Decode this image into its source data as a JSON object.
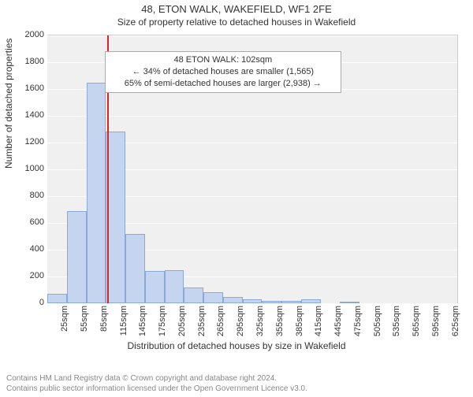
{
  "title": "48, ETON WALK, WAKEFIELD, WF1 2FE",
  "subtitle": "Size of property relative to detached houses in Wakefield",
  "chart": {
    "type": "histogram",
    "background_color": "#f0f0f0",
    "grid_color": "#ffffff",
    "bar_fill": "#c5d5ef",
    "bar_border": "#8aa8d8",
    "marker_color": "#d22",
    "marker_x_sqm": 102,
    "ylabel": "Number of detached properties",
    "xlabel": "Distribution of detached houses by size in Wakefield",
    "ylim": [
      0,
      2000
    ],
    "ytick_step": 200,
    "xlim": [
      10,
      640
    ],
    "xtick_start": 25,
    "xtick_step": 30,
    "xtick_suffix": "sqm",
    "label_fontsize": 12,
    "tick_fontsize": 11,
    "bars": [
      {
        "x0": 10,
        "x1": 40,
        "count": 70
      },
      {
        "x0": 40,
        "x1": 70,
        "count": 690
      },
      {
        "x0": 70,
        "x1": 100,
        "count": 1650
      },
      {
        "x0": 100,
        "x1": 130,
        "count": 1280
      },
      {
        "x0": 130,
        "x1": 160,
        "count": 520
      },
      {
        "x0": 160,
        "x1": 190,
        "count": 240
      },
      {
        "x0": 190,
        "x1": 220,
        "count": 250
      },
      {
        "x0": 220,
        "x1": 250,
        "count": 120
      },
      {
        "x0": 250,
        "x1": 280,
        "count": 80
      },
      {
        "x0": 280,
        "x1": 310,
        "count": 50
      },
      {
        "x0": 310,
        "x1": 340,
        "count": 30
      },
      {
        "x0": 340,
        "x1": 370,
        "count": 20
      },
      {
        "x0": 370,
        "x1": 400,
        "count": 15
      },
      {
        "x0": 400,
        "x1": 430,
        "count": 30
      },
      {
        "x0": 430,
        "x1": 460,
        "count": 0
      },
      {
        "x0": 460,
        "x1": 490,
        "count": 10
      },
      {
        "x0": 490,
        "x1": 520,
        "count": 0
      },
      {
        "x0": 520,
        "x1": 550,
        "count": 0
      },
      {
        "x0": 550,
        "x1": 580,
        "count": 0
      },
      {
        "x0": 580,
        "x1": 610,
        "count": 0
      },
      {
        "x0": 610,
        "x1": 640,
        "count": 0
      }
    ],
    "annotation": {
      "line1": "48 ETON WALK: 102sqm",
      "line2": "← 34% of detached houses are smaller (1,565)",
      "line3": "65% of semi-detached houses are larger (2,938) →",
      "x_sqm": 280,
      "y_count": 1880
    }
  },
  "footer": {
    "line1": "Contains HM Land Registry data © Crown copyright and database right 2024.",
    "line2": "Contains public sector information licensed under the Open Government Licence v3.0."
  }
}
